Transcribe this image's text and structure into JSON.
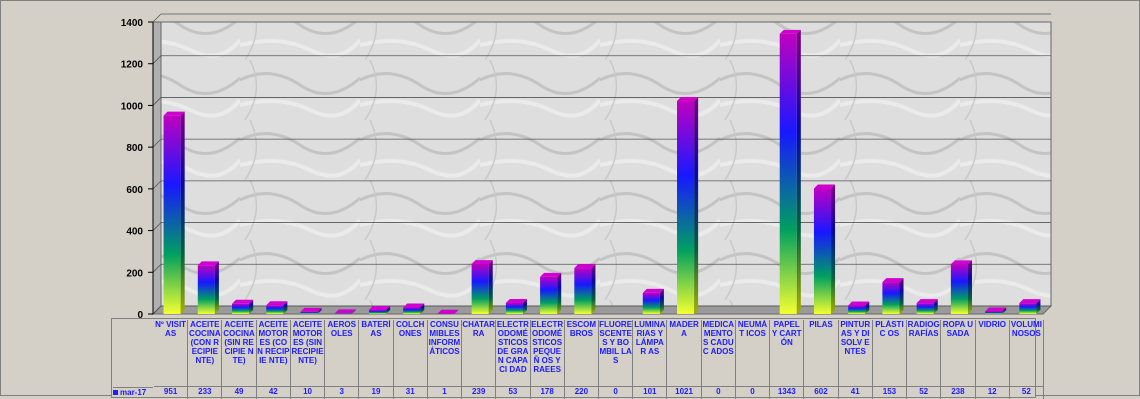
{
  "chart_data": {
    "type": "bar",
    "categories": [
      "Nº VISITAS",
      "ACEITE COCINA (CON RECIPIENTE)",
      "ACEITE COCINA (SIN RECIPIENTE)",
      "ACEITE MOTORES (CON RECIPIENTE)",
      "ACEITE MOTORES (SIN RECIPIENTE)",
      "AEROSOLES",
      "BATERÍAS",
      "COLCHONES",
      "CONSUMIBLES INFORMÁTICOS",
      "CHATARRA",
      "ELECTRODOMÉSTICOS DE GRAN CAPACIDAD",
      "ELECTRODOMÉSTICOS PEQUEÑOS Y RAEES",
      "ESCOMBROS",
      "FLUORESCENTES Y BOMBILLAS",
      "LUMINARIAS Y LÁMPARAS",
      "MADERA",
      "MEDICAMENTOS CADUCADOS",
      "NEUMÁTICOS",
      "PAPEL Y CARTÓN",
      "PILAS",
      "PINTURAS Y DISOLVENTES",
      "PLÁSTICOS",
      "RADIOGRAFÍAS",
      "ROPA USADA",
      "VIDRIO",
      "VOLUMINOSOS"
    ],
    "category_labels": [
      "Nº VISITAS",
      "ACEITE COCINA (CON RECIPIE NTE)",
      "ACEITE COCINA (SIN RECIPIE NTE)",
      "ACEITE MOTOR ES (CON RECIPIE NTE)",
      "ACEITE MOTOR ES (SIN RECIPIE NTE)",
      "AEROS OLES",
      "BATERÍ AS",
      "COLCH ONES",
      "CONSU MIBLES INFORM ÁTICOS",
      "CHATAR RA",
      "ELECTR ODOMÉ STICOS DE GRAN CAPACI DAD",
      "ELECTR ODOMÉ STICOS PEQUEÑ OS Y RAEES",
      "ESCOM BROS",
      "FLUORE SCENTE S Y BOMBIL LAS",
      "LUMINA RIAS Y LÁMPAR AS",
      "MADER A",
      "MEDICA MENTOS CADUC ADOS",
      "NEUMÁT ICOS",
      "PAPEL Y CARTÓN",
      "PILAS",
      "PINTUR AS Y DISOLV ENTES",
      "PLÁSTIC OS",
      "RADIOG RAFÍAS",
      "ROPA USADA",
      "VIDRIO",
      "VOLUMI NOSOS"
    ],
    "series": [
      {
        "name": "mar-17",
        "values": [
          951,
          233,
          49,
          42,
          10,
          3,
          19,
          31,
          1,
          239,
          53,
          178,
          220,
          0,
          101,
          1021,
          0,
          0,
          1343,
          602,
          41,
          153,
          52,
          238,
          12,
          52
        ]
      }
    ],
    "ylim": [
      0,
      1400
    ],
    "yticks": [
      0,
      200,
      400,
      600,
      800,
      1000,
      1200,
      1400
    ],
    "grid": true,
    "legend": "data-table-left"
  },
  "colors": {
    "background": "#d4d0c8",
    "plot_bg": "#dcdcdc",
    "label": "#1a1aff",
    "bar_gradient": [
      "#f0ff20",
      "#00a060",
      "#1010ff",
      "#c000c0"
    ]
  }
}
